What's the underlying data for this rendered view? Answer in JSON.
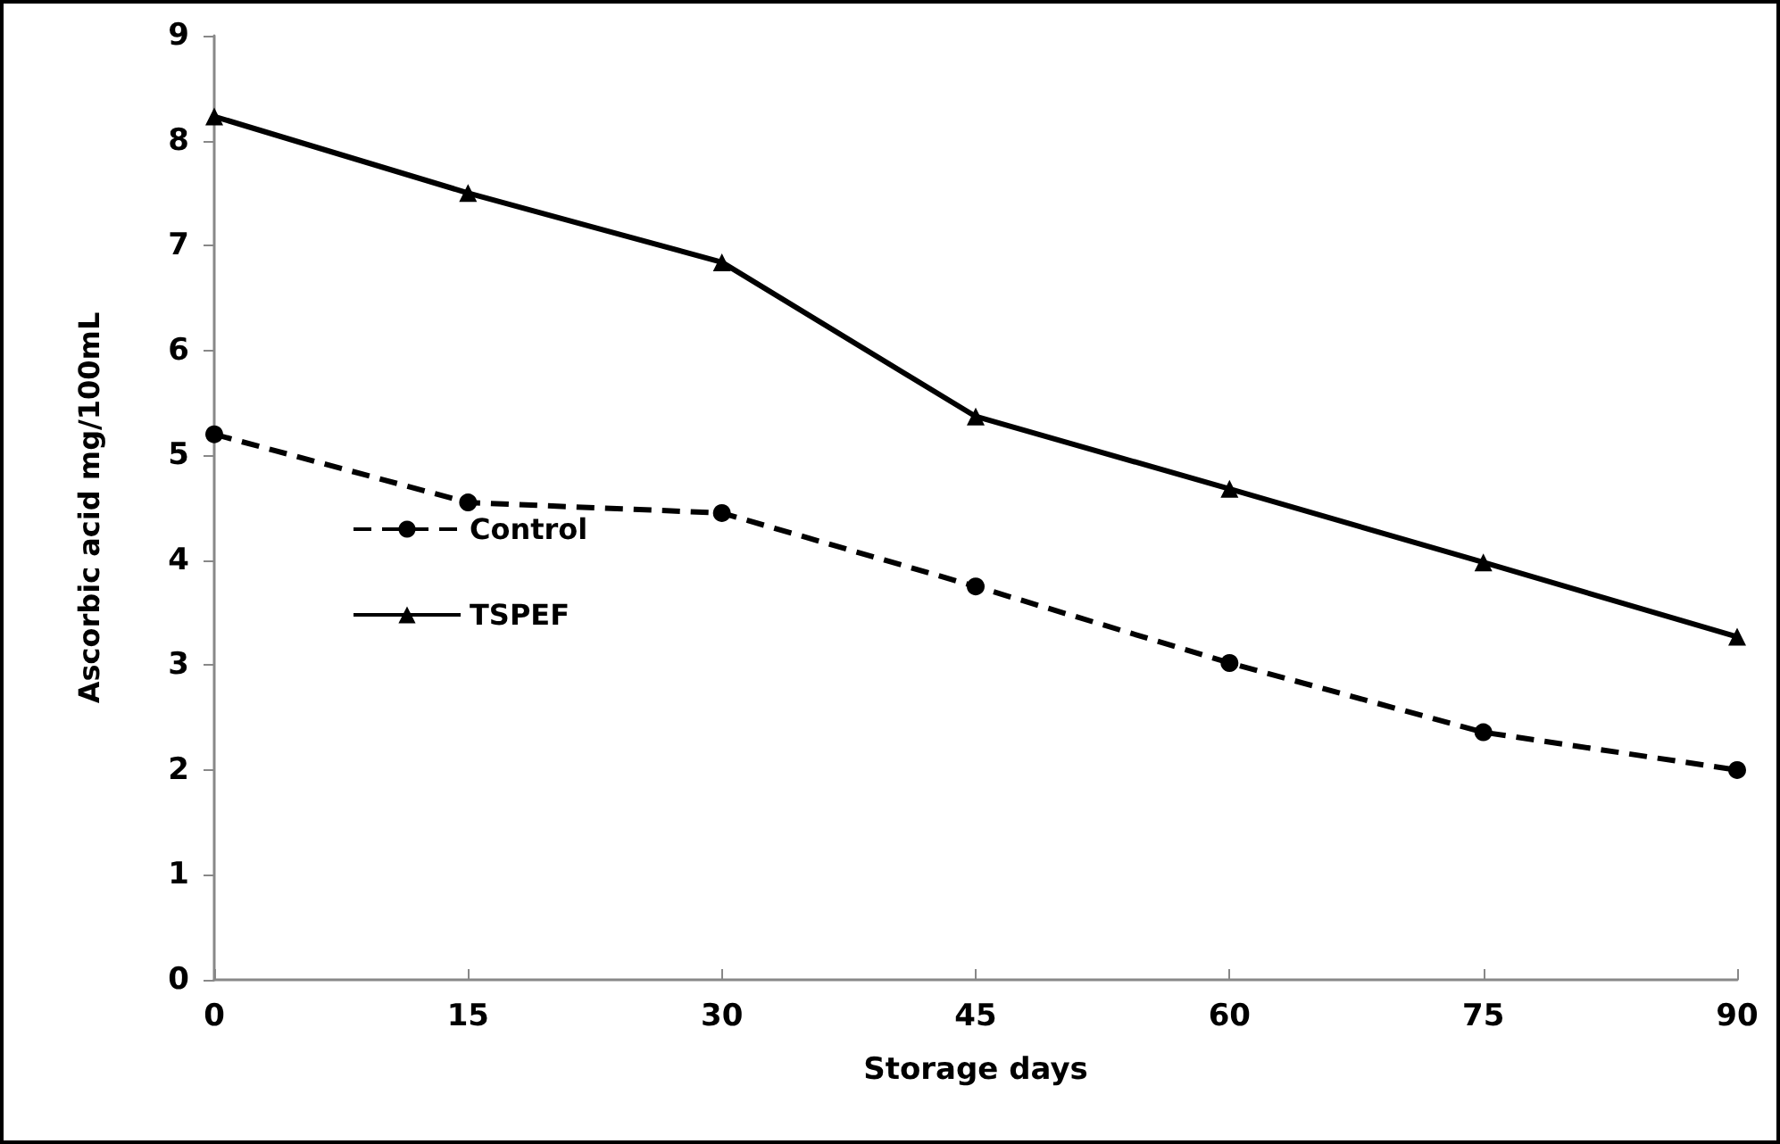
{
  "chart_data": {
    "type": "line",
    "xlabel": "Storage days",
    "ylabel": "Ascorbic acid mg/100mL",
    "x": [
      0,
      15,
      30,
      45,
      60,
      75,
      90
    ],
    "series": [
      {
        "name": "Control",
        "color": "#000000",
        "marker": "circle",
        "line_style": "dashed",
        "values": [
          5.2,
          4.55,
          4.45,
          3.75,
          3.02,
          2.36,
          2.0
        ]
      },
      {
        "name": "TSPEF",
        "color": "#000000",
        "marker": "triangle",
        "line_style": "solid",
        "values": [
          8.23,
          7.5,
          6.84,
          5.37,
          4.68,
          3.98,
          3.27
        ]
      }
    ],
    "xlim": [
      0,
      90
    ],
    "xticks": [
      0,
      15,
      30,
      45,
      60,
      75,
      90
    ],
    "ylim": [
      0,
      9
    ],
    "yticks": [
      0,
      1,
      2,
      3,
      4,
      5,
      6,
      7,
      8,
      9
    ],
    "grid": false,
    "legend": "left"
  }
}
